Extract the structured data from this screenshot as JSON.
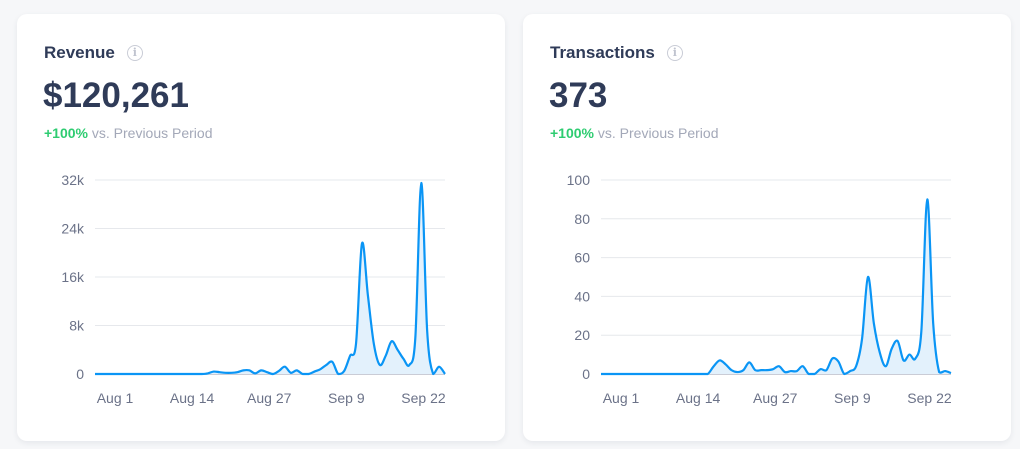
{
  "cards": [
    {
      "title": "Revenue",
      "value": "$120,261",
      "delta": "+100%",
      "delta_suffix": "vs. Previous Period"
    },
    {
      "title": "Transactions",
      "value": "373",
      "delta": "+100%",
      "delta_suffix": "vs. Previous Period"
    }
  ],
  "colors": {
    "line": "#0a95f5",
    "fill": "#e3f1fc",
    "grid": "#e6e8ec",
    "positive": "#2ecc71"
  },
  "chart_data": [
    {
      "type": "area",
      "title": "Revenue",
      "xlabel": "",
      "ylabel": "",
      "ylim": [
        0,
        32000
      ],
      "yticks": [
        "0",
        "8k",
        "16k",
        "24k",
        "32k"
      ],
      "ytick_values": [
        0,
        8000,
        16000,
        24000,
        32000
      ],
      "xticks": [
        "Aug 1",
        "Aug 14",
        "Aug 27",
        "Sep 9",
        "Sep 22"
      ],
      "xtick_days": [
        0,
        13,
        26,
        39,
        52
      ],
      "x_start": "Aug 1",
      "days": 60,
      "values": [
        0,
        0,
        0,
        0,
        0,
        0,
        0,
        0,
        0,
        0,
        0,
        0,
        0,
        0,
        0,
        0,
        0,
        0,
        0,
        100,
        400,
        300,
        200,
        200,
        300,
        600,
        600,
        100,
        600,
        300,
        0,
        500,
        1200,
        200,
        600,
        0,
        0,
        400,
        800,
        1500,
        2000,
        0,
        500,
        3000,
        5000,
        21500,
        13000,
        5000,
        1500,
        3000,
        5400,
        4000,
        2500,
        1500,
        6000,
        31500,
        7000,
        0,
        1200,
        0
      ]
    },
    {
      "type": "area",
      "title": "Transactions",
      "xlabel": "",
      "ylabel": "",
      "ylim": [
        0,
        100
      ],
      "yticks": [
        "0",
        "20",
        "40",
        "60",
        "80",
        "100"
      ],
      "ytick_values": [
        0,
        20,
        40,
        60,
        80,
        100
      ],
      "xticks": [
        "Aug 1",
        "Aug 14",
        "Aug 27",
        "Sep 9",
        "Sep 22"
      ],
      "xtick_days": [
        0,
        13,
        26,
        39,
        52
      ],
      "x_start": "Aug 1",
      "days": 60,
      "values": [
        0,
        0,
        0,
        0,
        0,
        0,
        0,
        0,
        0,
        0,
        0,
        0,
        0,
        0,
        0,
        0,
        0,
        0,
        0,
        4,
        7,
        5,
        2,
        1,
        2,
        6,
        2,
        2,
        2,
        2.5,
        4,
        1,
        1.5,
        1.5,
        4,
        0,
        0,
        2.5,
        2,
        8,
        6.5,
        0,
        1.5,
        4,
        18,
        50,
        26,
        11,
        4,
        13,
        17,
        7,
        10,
        8,
        22,
        90,
        26,
        1,
        1.5,
        0.5
      ]
    }
  ]
}
